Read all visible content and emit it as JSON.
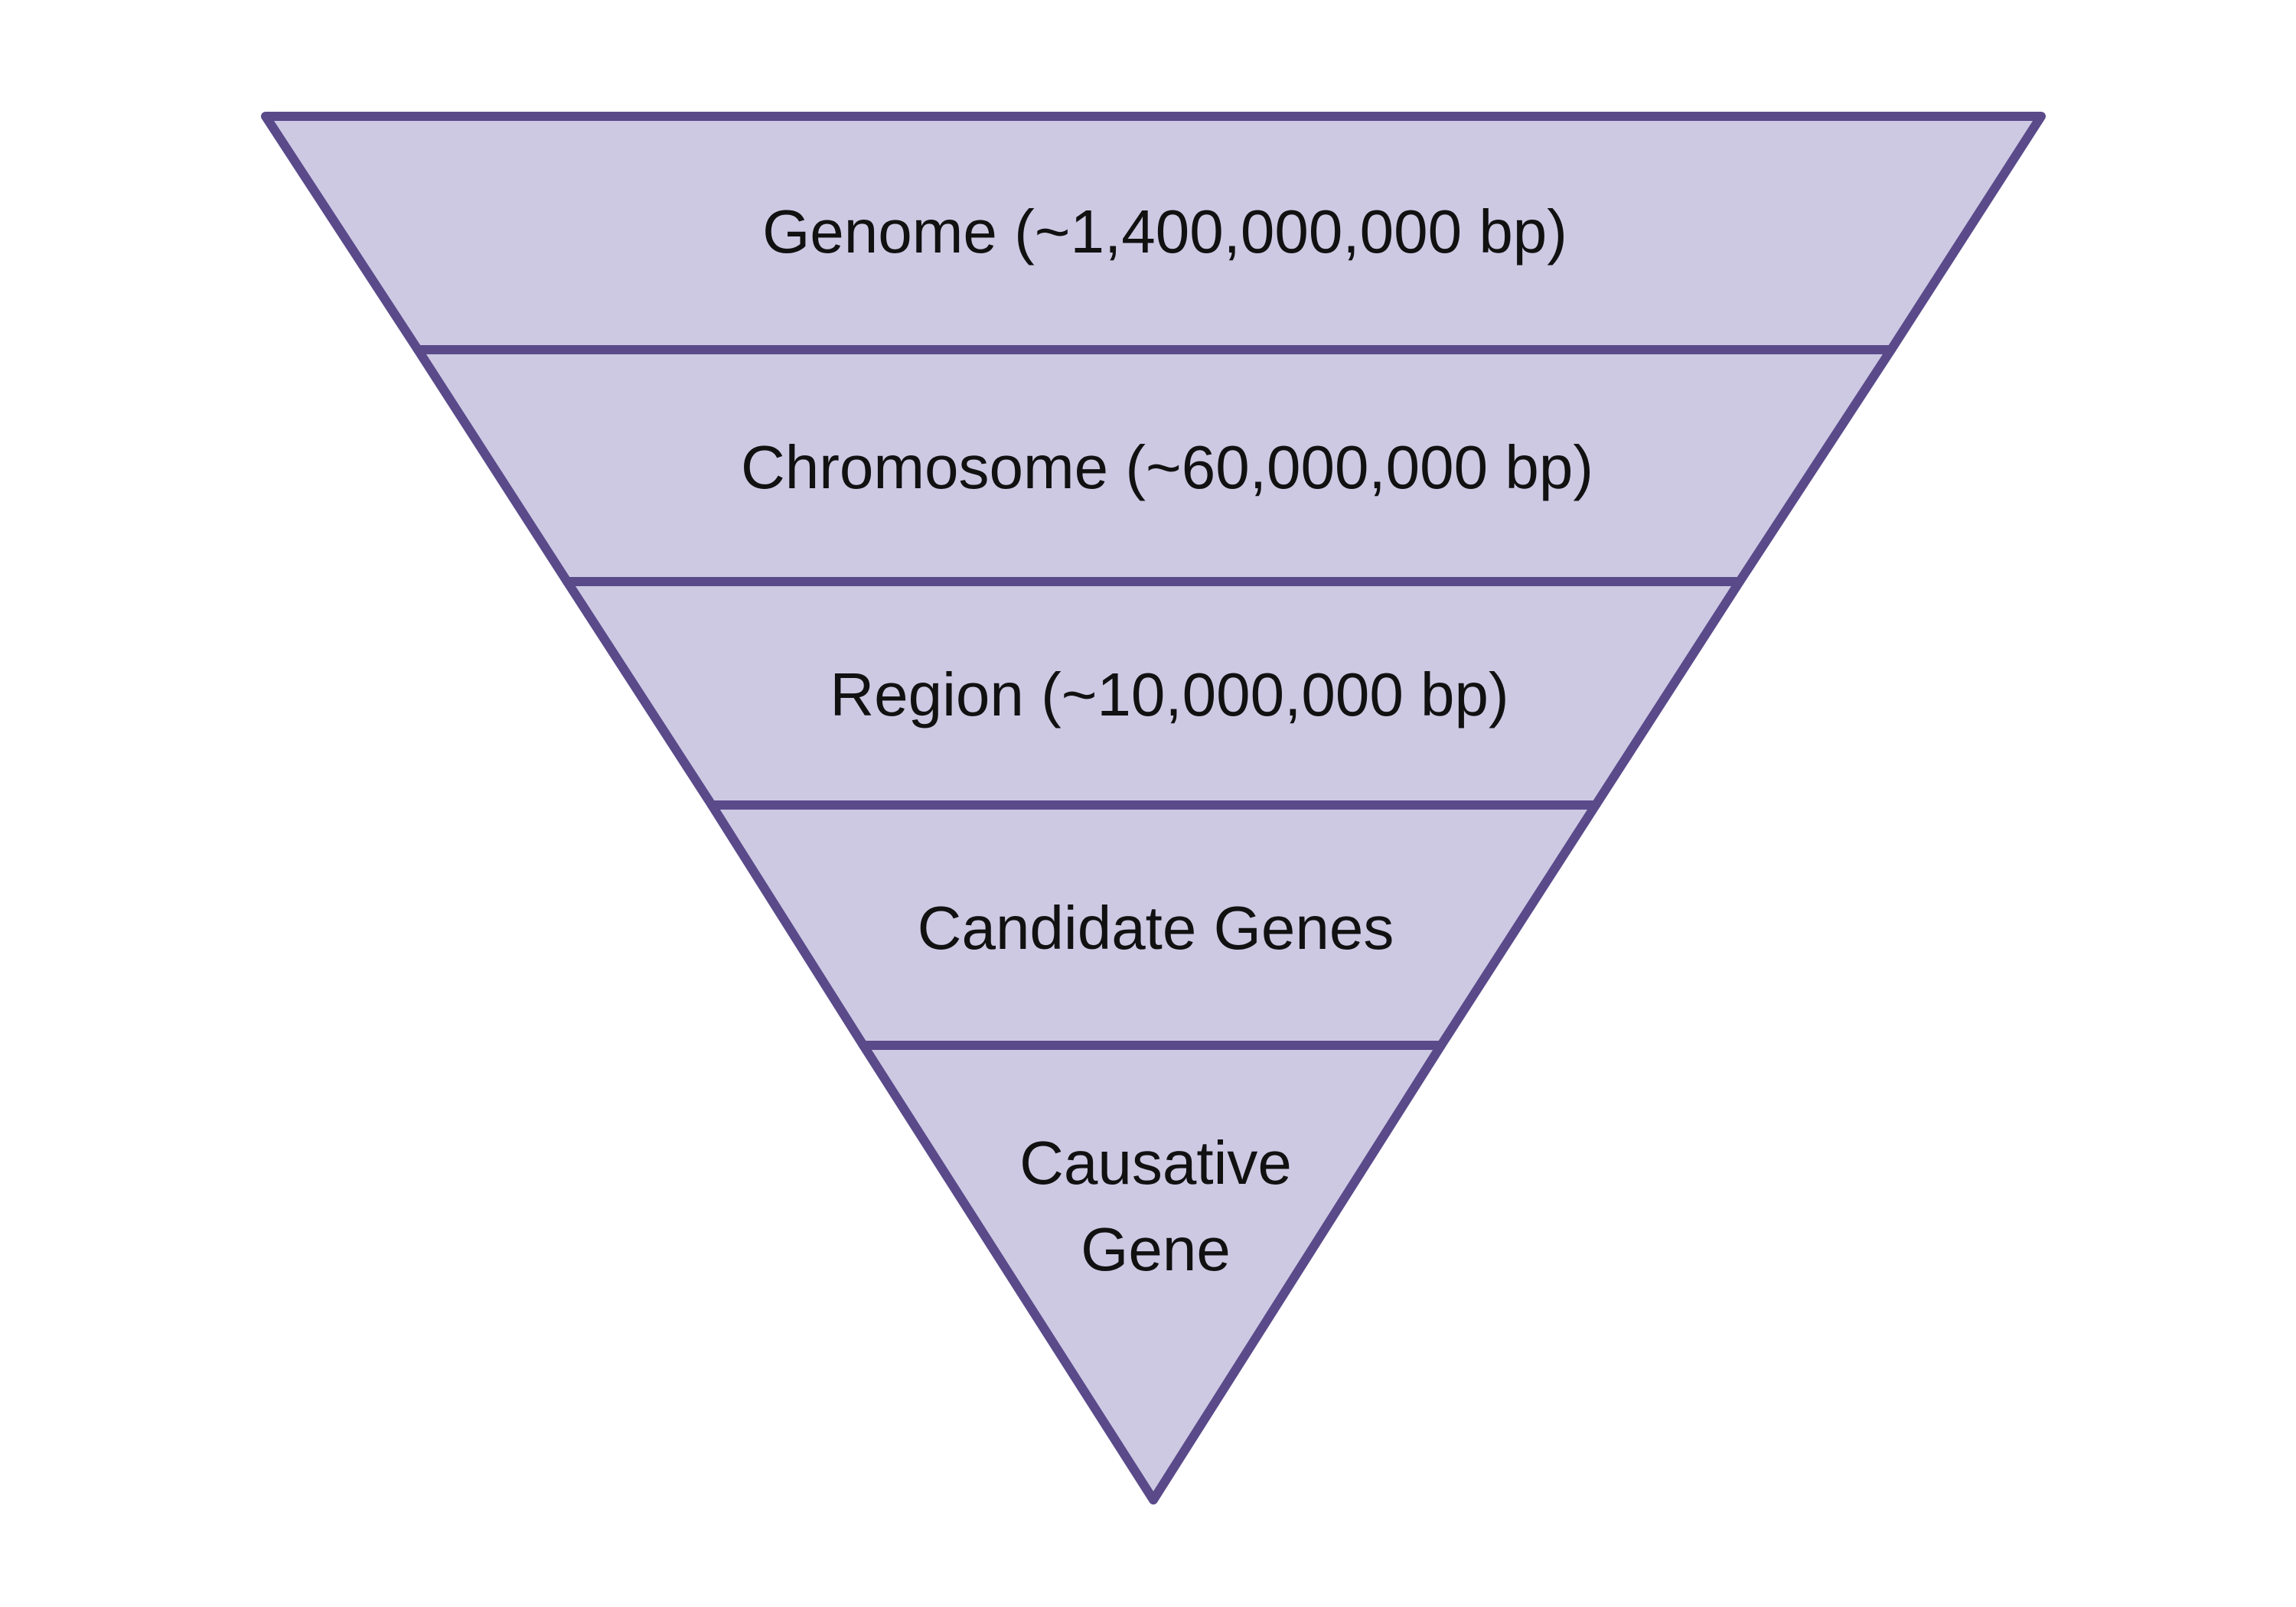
{
  "funnel": {
    "colors": {
      "fill": "#cdc9e3",
      "stroke": "#5a4a8a",
      "text": "#111111",
      "background": "#ffffff"
    },
    "tiers": [
      {
        "id": "genome",
        "label": "Genome (~1,400,000,000 bp)"
      },
      {
        "id": "chromosome",
        "label": "Chromosome (~60,000,000 bp)"
      },
      {
        "id": "region",
        "label": "Region (~10,000,000 bp)"
      },
      {
        "id": "candidate-genes",
        "label": "Candidate Genes"
      },
      {
        "id": "causative-gene",
        "label_lines": [
          "Causative",
          "Gene"
        ]
      }
    ]
  }
}
